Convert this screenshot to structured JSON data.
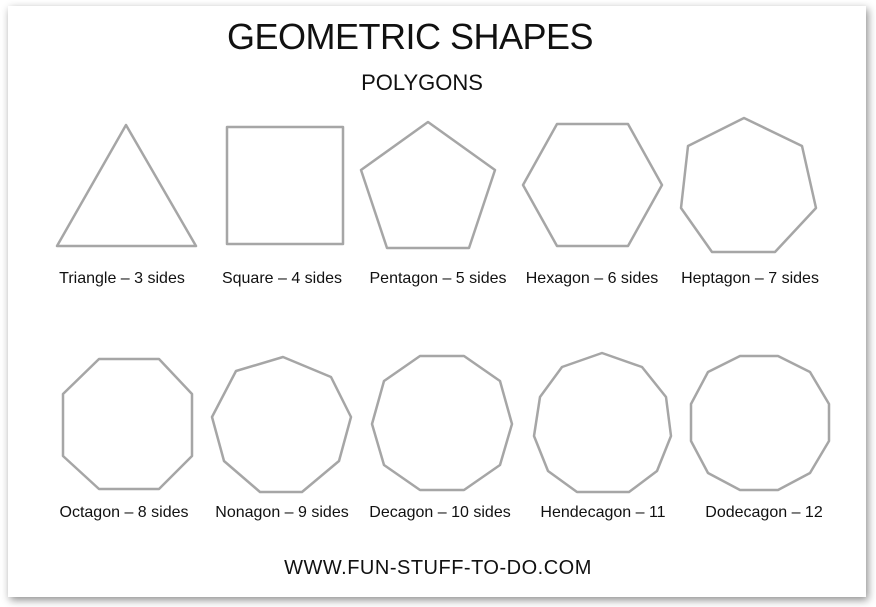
{
  "header": {
    "title": "GEOMETRIC SHAPES",
    "subtitle": "POLYGONS"
  },
  "shape_stroke_color": "#a6a6a6",
  "shapes": [
    {
      "name": "triangle",
      "sides": 3,
      "label": "Triangle – 3 sides"
    },
    {
      "name": "square",
      "sides": 4,
      "label": "Square – 4 sides"
    },
    {
      "name": "pentagon",
      "sides": 5,
      "label": "Pentagon – 5 sides"
    },
    {
      "name": "hexagon",
      "sides": 6,
      "label": "Hexagon – 6 sides"
    },
    {
      "name": "heptagon",
      "sides": 7,
      "label": "Heptagon – 7 sides"
    },
    {
      "name": "octagon",
      "sides": 8,
      "label": "Octagon – 8 sides"
    },
    {
      "name": "nonagon",
      "sides": 9,
      "label": "Nonagon – 9 sides"
    },
    {
      "name": "decagon",
      "sides": 10,
      "label": "Decagon – 10 sides"
    },
    {
      "name": "hendecagon",
      "sides": 11,
      "label": "Hendecagon – 11"
    },
    {
      "name": "dodecagon",
      "sides": 12,
      "label": "Dodecagon – 12"
    }
  ],
  "footer": {
    "url": "WWW.FUN-STUFF-TO-DO.COM"
  }
}
